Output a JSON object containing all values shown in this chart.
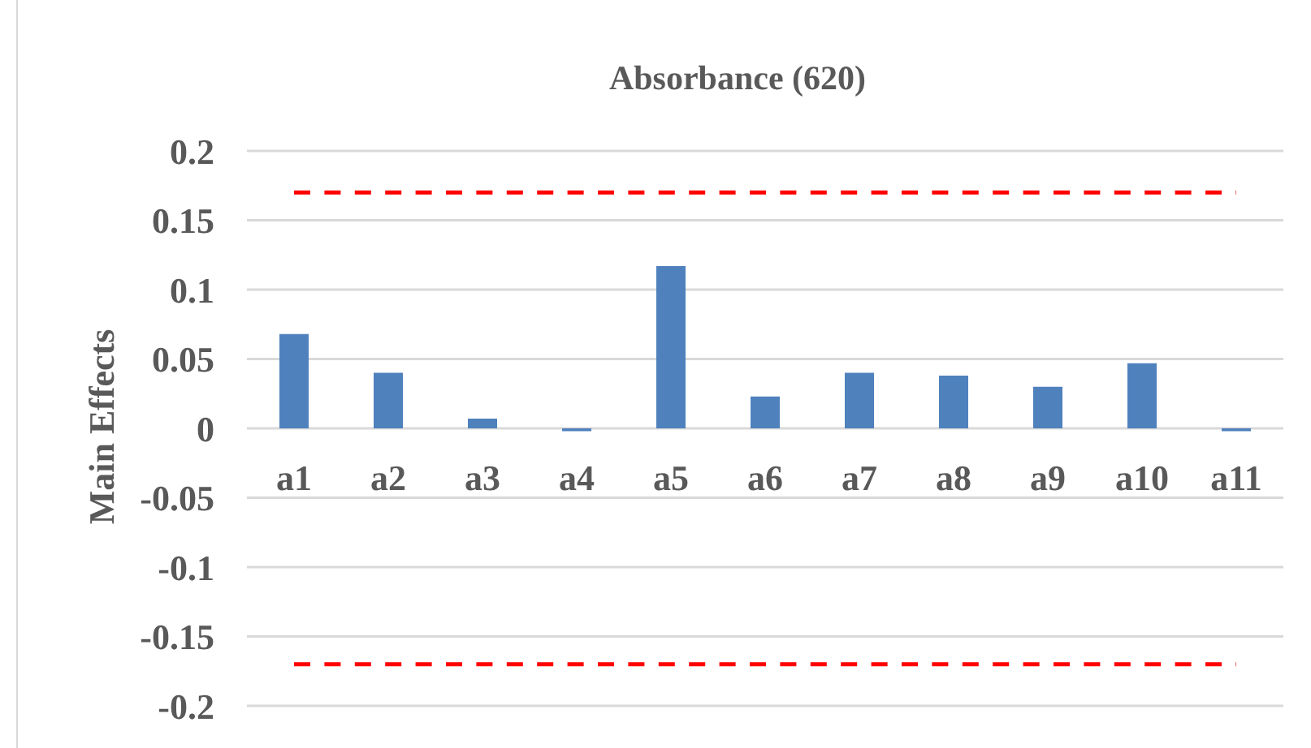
{
  "chart_data": {
    "type": "bar",
    "title": "Absorbance (620)",
    "ylabel": "Main Effects",
    "categories": [
      "a1",
      "a2",
      "a3",
      "a4",
      "a5",
      "a6",
      "a7",
      "a8",
      "a9",
      "a10",
      "a11"
    ],
    "values": [
      0.068,
      0.04,
      0.007,
      -0.002,
      0.117,
      0.023,
      0.04,
      0.038,
      0.03,
      0.047,
      -0.002
    ],
    "color": "#4f81bd",
    "ylim": [
      -0.2,
      0.2
    ],
    "yticks": [
      -0.2,
      -0.15,
      -0.1,
      -0.05,
      0,
      0.05,
      0.1,
      0.15,
      0.2
    ],
    "grid": "y",
    "ref_lines": [
      {
        "axis": "y",
        "value": 0.17,
        "color": "#ff0000",
        "line_style": "dashed"
      },
      {
        "axis": "y",
        "value": -0.17,
        "color": "#ff0000",
        "line_style": "dashed"
      }
    ]
  }
}
